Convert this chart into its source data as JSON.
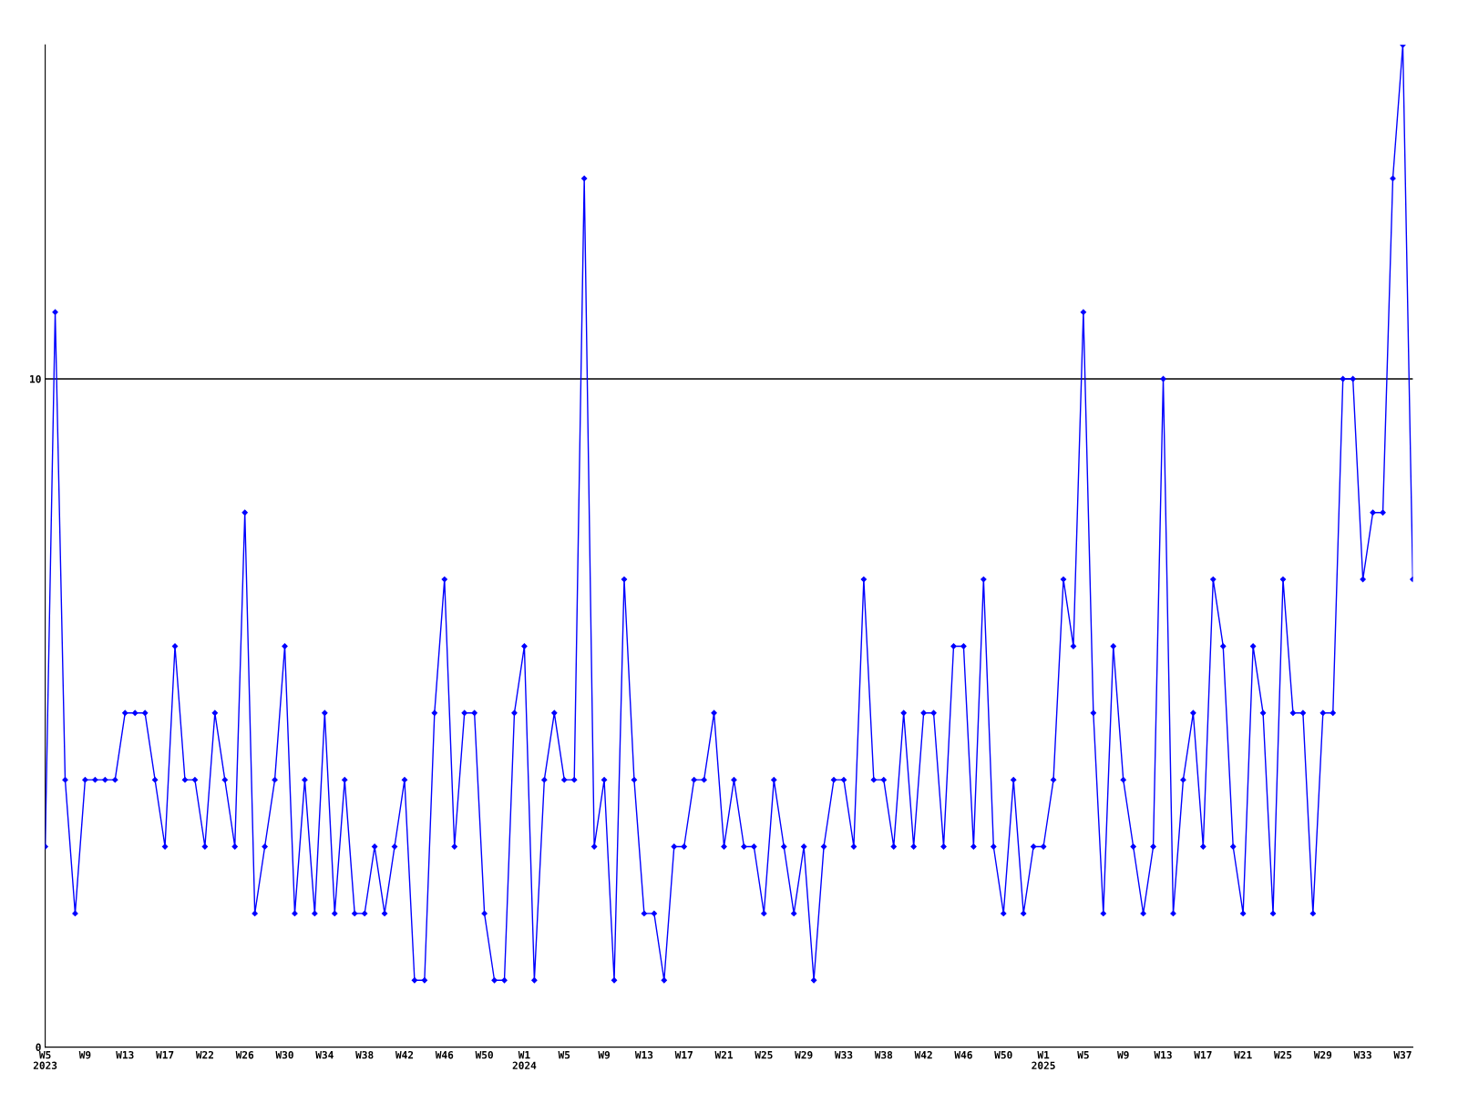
{
  "chart_data": {
    "type": "line",
    "categories": [
      "W5\n2023",
      null,
      null,
      null,
      "W9",
      null,
      null,
      null,
      "W13",
      null,
      null,
      null,
      "W17",
      null,
      null,
      null,
      "W22",
      null,
      null,
      null,
      "W26",
      null,
      null,
      null,
      "W30",
      null,
      null,
      null,
      "W34",
      null,
      null,
      null,
      "W38",
      null,
      null,
      null,
      "W42",
      null,
      null,
      null,
      "W46",
      null,
      null,
      null,
      "W50",
      null,
      null,
      null,
      "W1\n2024",
      null,
      null,
      null,
      "W5",
      null,
      null,
      null,
      "W9",
      null,
      null,
      null,
      "W13",
      null,
      null,
      null,
      "W17",
      null,
      null,
      null,
      "W21",
      null,
      null,
      null,
      "W25",
      null,
      null,
      null,
      "W29",
      null,
      null,
      null,
      "W33",
      null,
      null,
      null,
      "W38",
      null,
      null,
      null,
      "W42",
      null,
      null,
      null,
      "W46",
      null,
      null,
      null,
      "W50",
      null,
      null,
      null,
      "W1\n2025",
      null,
      null,
      null,
      "W5",
      null,
      null,
      null,
      "W9",
      null,
      null,
      null,
      "W13",
      null,
      null,
      null,
      "W17",
      null,
      null,
      null,
      "W21",
      null,
      null,
      null,
      "W25",
      null,
      null,
      null,
      "W29",
      null,
      null,
      null,
      "W33",
      null,
      null,
      null,
      "W37",
      null
    ],
    "series": [
      {
        "color": "#0000ff",
        "values": [
          3,
          11,
          4,
          2,
          4,
          4,
          4,
          4,
          5,
          5,
          5,
          4,
          3,
          6,
          4,
          4,
          3,
          5,
          4,
          3,
          8,
          2,
          3,
          4,
          6,
          2,
          4,
          2,
          5,
          2,
          4,
          2,
          2,
          3,
          2,
          3,
          4,
          1,
          1,
          5,
          7,
          3,
          5,
          5,
          2,
          1,
          1,
          5,
          6,
          1,
          4,
          5,
          4,
          4,
          13,
          3,
          4,
          1,
          7,
          4,
          2,
          2,
          1,
          3,
          3,
          4,
          4,
          5,
          3,
          4,
          3,
          3,
          2,
          4,
          3,
          2,
          3,
          1,
          3,
          4,
          4,
          3,
          7,
          4,
          4,
          3,
          5,
          3,
          5,
          5,
          3,
          6,
          6,
          3,
          7,
          3,
          2,
          4,
          2,
          3,
          3,
          4,
          7,
          6,
          11,
          5,
          2,
          6,
          4,
          3,
          2,
          3,
          10,
          2,
          4,
          5,
          3,
          7,
          6,
          3,
          2,
          6,
          5,
          2,
          7,
          5,
          5,
          2,
          5,
          5,
          10,
          10,
          7,
          8,
          8,
          13,
          15,
          7
        ]
      }
    ],
    "ylim": [
      0,
      15
    ],
    "yticks": [
      0,
      10
    ],
    "grid": "y",
    "marker": "diamond",
    "line_style": "solid"
  }
}
